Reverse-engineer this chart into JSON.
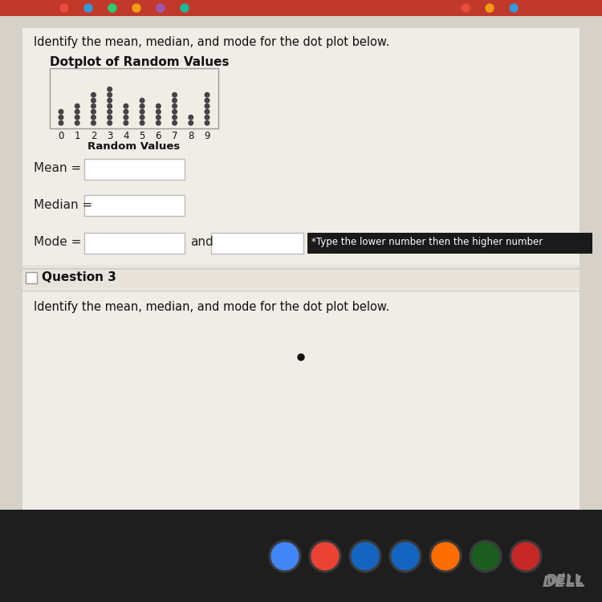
{
  "title": "Dotplot of Random Values",
  "xlabel": "Random Values",
  "dot_counts": [
    3,
    4,
    6,
    7,
    4,
    5,
    4,
    6,
    2,
    6
  ],
  "x_values": [
    0,
    1,
    2,
    3,
    4,
    5,
    6,
    7,
    8,
    9
  ],
  "dot_color": "#444444",
  "bg_color": "#d6d2ca",
  "content_bg": "#f0ece6",
  "section_bg": "#e8e4dc",
  "mean_label": "Mean =",
  "median_label": "Median =",
  "mode_label": "Mode =",
  "and_label": "and",
  "tooltip_text": "*Type the lower number then the higher number",
  "question_label": "Question 3",
  "bottom_text": "Identify the mean, median, and mode for the dot plot below.",
  "instruction_text": "Identify the mean, median, and mode for the dot plot below.",
  "taskbar_color": "#2c2c2c",
  "taskbar_icons": [
    "#4285F4",
    "#EA4335",
    "#34A853",
    "#FBBC05",
    "#1a73e8",
    "#ff5722",
    "#4CAF50",
    "#2196F3",
    "#f44336",
    "#9C27B0"
  ],
  "taskbar_icon_colors": [
    "#ffffff",
    "#34a853",
    "#4285f4",
    "#1565c0",
    "#ff6d00",
    "#00897b",
    "#e53935",
    "#ffffff"
  ]
}
